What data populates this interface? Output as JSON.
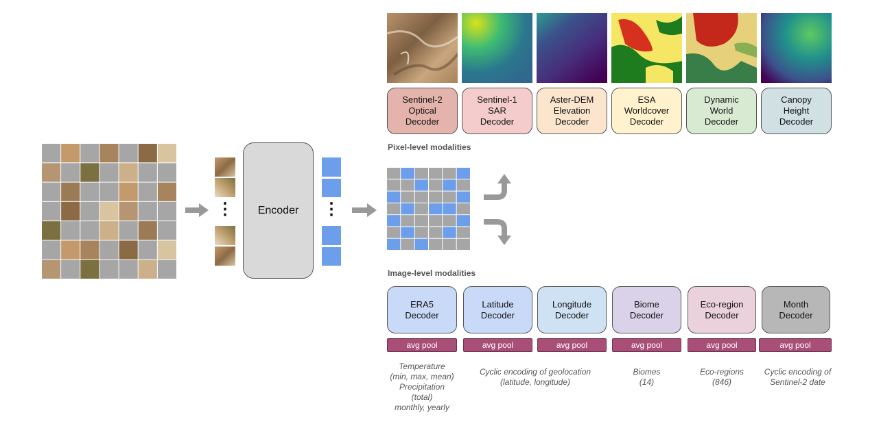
{
  "pixel_decoders": [
    {
      "lines": [
        "Sentinel-2",
        "Optical",
        "Decoder"
      ],
      "color": "#e4b3ab"
    },
    {
      "lines": [
        "Sentinel-1",
        "SAR",
        "Decoder"
      ],
      "color": "#f4cccc"
    },
    {
      "lines": [
        "Aster-DEM",
        "Elevation",
        "Decoder"
      ],
      "color": "#fce5cd"
    },
    {
      "lines": [
        "ESA",
        "Worldcover",
        "Decoder"
      ],
      "color": "#fff2cc"
    },
    {
      "lines": [
        "Dynamic",
        "World",
        "Decoder"
      ],
      "color": "#d9ead3"
    },
    {
      "lines": [
        "Canopy",
        "Height",
        "Decoder"
      ],
      "color": "#d0e0e3"
    }
  ],
  "pixel_section_label": "Pixel-level modalities",
  "image_section_label": "Image-level modalities",
  "encoder_label": "Encoder",
  "ellipsis": "⋮",
  "image_decoders": [
    {
      "lines": [
        "ERA5",
        "Decoder"
      ],
      "color": "#c9daf8"
    },
    {
      "lines": [
        "Latitude",
        "Decoder"
      ],
      "color": "#c9daf8"
    },
    {
      "lines": [
        "Longitude",
        "Decoder"
      ],
      "color": "#cfe2f3"
    },
    {
      "lines": [
        "Biome",
        "Decoder"
      ],
      "color": "#d9d2e9"
    },
    {
      "lines": [
        "Eco-region",
        "Decoder"
      ],
      "color": "#ead1dc"
    },
    {
      "lines": [
        "Month",
        "Decoder"
      ],
      "color": "#b7b7b7"
    }
  ],
  "pool_label": "avg pool",
  "notes": {
    "era5": [
      "Temperature",
      "(min, max, mean)",
      "Precipitation",
      "(total)",
      "monthly, yearly"
    ],
    "geo": [
      "Cyclic encoding of geolocation",
      "(latitude, longitude)"
    ],
    "biome": [
      "Biomes",
      "(14)"
    ],
    "eco": [
      "Eco-regions",
      "(846)"
    ],
    "month": [
      "Cyclic encoding of",
      "Sentinel-2 date"
    ]
  },
  "colors": {
    "mask_gray": "#a6a6a6",
    "token_blue": "#6d9eeb",
    "arrow_gray": "#999999",
    "encoder_fill": "#d9d9d9",
    "pool_fill": "#a94f77"
  },
  "masked_grid_pattern": [
    [
      0,
      1,
      0,
      0,
      0,
      1
    ],
    [
      0,
      0,
      1,
      0,
      1,
      0
    ],
    [
      1,
      0,
      0,
      0,
      0,
      1
    ],
    [
      0,
      1,
      0,
      1,
      1,
      0
    ],
    [
      1,
      0,
      0,
      0,
      0,
      1
    ],
    [
      0,
      1,
      0,
      0,
      1,
      0
    ],
    [
      1,
      0,
      1,
      0,
      0,
      0
    ]
  ]
}
